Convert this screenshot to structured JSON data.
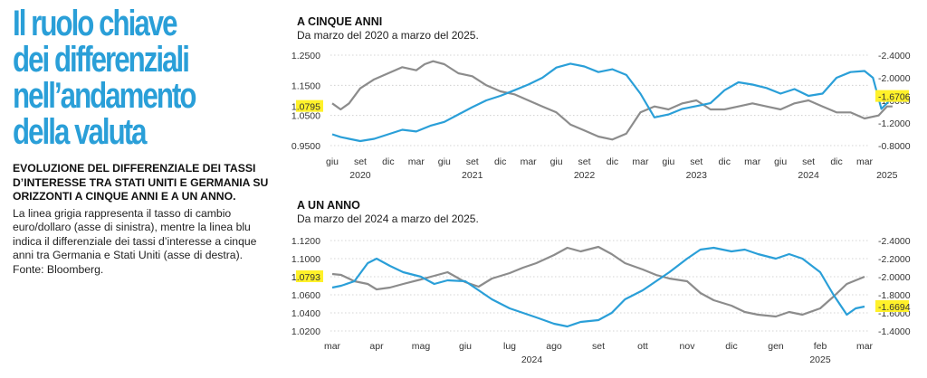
{
  "headline": [
    "Il ruolo chiave",
    "dei differenziali",
    "nell’andamento",
    "della valuta"
  ],
  "subhead": "EVOLUZIONE DEL DIFFERENZIALE DEI TASSI D’INTERESSE TRA STATI UNITI E GERMANIA SU ORIZZONTI A CINQUE ANNI E A UN ANNO.",
  "note": "La linea grigia rappresenta il tasso di cambio euro/dollaro (asse di sinistra), mentre la linea blu indica il differenziale dei tassi d’interesse a cinque anni tra Germania e Stati Uniti (asse di destra). Fonte: Bloomberg.",
  "colors": {
    "accent": "#2a9fd8",
    "gray_series": "#8c8c8c",
    "highlight": "#fff12a"
  },
  "chart_data": [
    {
      "type": "line",
      "title": "A CINQUE ANNI",
      "subtitle": "Da marzo del 2020 a marzo del 2025.",
      "month_labels": [
        "giu",
        "set",
        "dic",
        "mar",
        "giu",
        "set",
        "dic",
        "mar",
        "giu",
        "set",
        "dic",
        "mar",
        "giu",
        "set",
        "dic",
        "mar",
        "giu",
        "set",
        "dic",
        "mar"
      ],
      "year_labels": [
        {
          "label": "2020",
          "under": 1
        },
        {
          "label": "2021",
          "under": 5
        },
        {
          "label": "2022",
          "under": 9
        },
        {
          "label": "2023",
          "under": 13
        },
        {
          "label": "2024",
          "under": 17
        },
        {
          "label": "2025",
          "under": 19.8
        }
      ],
      "left_axis": {
        "ticks": [
          "1.2500",
          "1.1500",
          "1.0500",
          "0.9500"
        ],
        "values": [
          1.25,
          1.15,
          1.05,
          0.95
        ],
        "ylim": [
          0.95,
          1.25
        ]
      },
      "right_axis": {
        "ticks": [
          "-0.8000",
          "-1.2000",
          "-1.6000",
          "-2.0000",
          "-2.4000"
        ],
        "values": [
          -0.8,
          -1.2,
          -1.6,
          -2.0,
          -2.4
        ],
        "ylim": [
          -2.4,
          -0.8
        ]
      },
      "last_left_label": "1.0795",
      "last_right_label": "-1.6706",
      "series": [
        {
          "axis": "left",
          "color": "#8c8c8c",
          "x": [
            0,
            0.3,
            0.6,
            1,
            1.5,
            2,
            2.5,
            3,
            3.3,
            3.6,
            4,
            4.5,
            5,
            5.5,
            6,
            6.5,
            7,
            7.5,
            8,
            8.5,
            9,
            9.5,
            10,
            10.5,
            11,
            11.5,
            12,
            12.5,
            13,
            13.5,
            14,
            14.5,
            15,
            15.5,
            16,
            16.5,
            17,
            17.5,
            18,
            18.5,
            19,
            19.5,
            19.8,
            20
          ],
          "values": [
            1.09,
            1.07,
            1.09,
            1.14,
            1.17,
            1.19,
            1.21,
            1.2,
            1.22,
            1.23,
            1.22,
            1.19,
            1.18,
            1.15,
            1.13,
            1.12,
            1.1,
            1.08,
            1.06,
            1.02,
            1.0,
            0.98,
            0.97,
            0.99,
            1.06,
            1.08,
            1.07,
            1.09,
            1.1,
            1.07,
            1.07,
            1.08,
            1.09,
            1.08,
            1.07,
            1.09,
            1.1,
            1.08,
            1.06,
            1.06,
            1.04,
            1.05,
            1.08,
            1.08
          ]
        },
        {
          "axis": "right",
          "color": "#2a9fd8",
          "x": [
            0,
            0.3,
            0.6,
            1,
            1.5,
            2,
            2.5,
            3,
            3.5,
            4,
            4.5,
            5,
            5.5,
            6,
            6.5,
            7,
            7.5,
            8,
            8.5,
            9,
            9.5,
            10,
            10.5,
            11,
            11.5,
            12,
            12.5,
            13,
            13.5,
            14,
            14.5,
            15,
            15.5,
            16,
            16.5,
            17,
            17.5,
            18,
            18.5,
            19,
            19.3,
            19.6,
            19.8,
            20
          ],
          "values": [
            -1.0,
            -0.95,
            -0.92,
            -0.88,
            -0.92,
            -1.0,
            -1.08,
            -1.05,
            -1.15,
            -1.22,
            -1.35,
            -1.48,
            -1.6,
            -1.68,
            -1.78,
            -1.88,
            -2.0,
            -2.18,
            -2.25,
            -2.2,
            -2.1,
            -2.15,
            -2.05,
            -1.72,
            -1.3,
            -1.35,
            -1.45,
            -1.5,
            -1.55,
            -1.78,
            -1.92,
            -1.88,
            -1.82,
            -1.72,
            -1.8,
            -1.68,
            -1.72,
            -2.0,
            -2.1,
            -2.12,
            -2.0,
            -1.45,
            -1.55,
            -1.67
          ]
        }
      ]
    },
    {
      "type": "line",
      "title": "A UN ANNO",
      "subtitle": "Da marzo del 2024 a marzo del 2025.",
      "month_labels": [
        "mar",
        "apr",
        "mag",
        "giu",
        "lug",
        "ago",
        "set",
        "ott",
        "nov",
        "dic",
        "gen",
        "feb",
        "mar"
      ],
      "year_labels": [
        {
          "label": "2024",
          "under": 4.5
        },
        {
          "label": "2025",
          "under": 11
        }
      ],
      "left_axis": {
        "ticks": [
          "1.1200",
          "1.1000",
          "1.0800",
          "1.0600",
          "1.0400",
          "1.0200"
        ],
        "values": [
          1.12,
          1.1,
          1.08,
          1.06,
          1.04,
          1.02
        ],
        "ylim": [
          1.02,
          1.12
        ]
      },
      "right_axis": {
        "ticks": [
          "-1.4000",
          "-1.6000",
          "-1.8000",
          "-2.0000",
          "-2.2000",
          "-2.4000"
        ],
        "values": [
          -1.4,
          -1.6,
          -1.8,
          -2.0,
          -2.2,
          -2.4
        ],
        "ylim": [
          -2.4,
          -1.4
        ]
      },
      "last_left_label": "1.0793",
      "last_right_label": "-1.6694",
      "series": [
        {
          "axis": "left",
          "color": "#8c8c8c",
          "x": [
            0,
            0.2,
            0.5,
            0.8,
            1,
            1.3,
            1.6,
            2,
            2.3,
            2.6,
            3,
            3.3,
            3.6,
            4,
            4.3,
            4.6,
            5,
            5.3,
            5.6,
            6,
            6.3,
            6.6,
            7,
            7.3,
            7.6,
            8,
            8.3,
            8.6,
            9,
            9.3,
            9.6,
            10,
            10.3,
            10.6,
            11,
            11.3,
            11.6,
            12
          ],
          "values": [
            1.083,
            1.082,
            1.075,
            1.072,
            1.066,
            1.068,
            1.072,
            1.077,
            1.081,
            1.085,
            1.074,
            1.069,
            1.078,
            1.084,
            1.09,
            1.095,
            1.104,
            1.112,
            1.108,
            1.113,
            1.105,
            1.095,
            1.088,
            1.082,
            1.078,
            1.075,
            1.062,
            1.054,
            1.048,
            1.041,
            1.038,
            1.036,
            1.041,
            1.038,
            1.045,
            1.058,
            1.072,
            1.08
          ]
        },
        {
          "axis": "right",
          "color": "#2a9fd8",
          "x": [
            0,
            0.2,
            0.5,
            0.8,
            1,
            1.3,
            1.6,
            2,
            2.3,
            2.6,
            3,
            3.3,
            3.6,
            4,
            4.3,
            4.6,
            5,
            5.3,
            5.6,
            6,
            6.3,
            6.6,
            7,
            7.3,
            7.6,
            8,
            8.3,
            8.6,
            9,
            9.3,
            9.6,
            10,
            10.3,
            10.6,
            11,
            11.3,
            11.6,
            11.8,
            12
          ],
          "values": [
            -1.88,
            -1.9,
            -1.95,
            -2.15,
            -2.2,
            -2.12,
            -2.05,
            -2.0,
            -1.92,
            -1.96,
            -1.95,
            -1.85,
            -1.75,
            -1.65,
            -1.6,
            -1.55,
            -1.48,
            -1.45,
            -1.5,
            -1.52,
            -1.6,
            -1.75,
            -1.85,
            -1.95,
            -2.05,
            -2.2,
            -2.3,
            -2.32,
            -2.28,
            -2.3,
            -2.25,
            -2.2,
            -2.25,
            -2.2,
            -2.05,
            -1.8,
            -1.58,
            -1.65,
            -1.67
          ]
        }
      ]
    }
  ]
}
